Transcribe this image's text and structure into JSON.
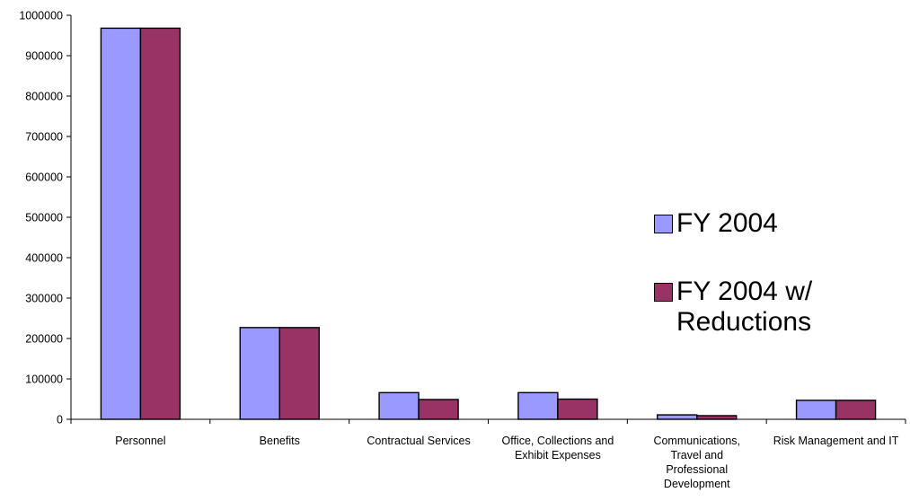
{
  "chart_data": {
    "type": "bar",
    "categories": [
      "Personnel",
      "Benefits",
      "Contractual Services",
      "Office, Collections and Exhibit Expenses",
      "Communications, Travel and Professional Development",
      "Risk Management and IT"
    ],
    "series": [
      {
        "name": "FY 2004",
        "color": "#9999ff",
        "values": [
          968000,
          227000,
          66000,
          66000,
          11000,
          47000
        ]
      },
      {
        "name": "FY 2004 w/ Reductions",
        "color": "#993366",
        "values": [
          968000,
          227000,
          49000,
          50000,
          9000,
          47000
        ]
      }
    ],
    "yticks": [
      "0",
      "100000",
      "200000",
      "300000",
      "400000",
      "500000",
      "600000",
      "700000",
      "800000",
      "900000",
      "1000000"
    ],
    "ylim": [
      0,
      1000000
    ],
    "title": "",
    "xlabel": "",
    "ylabel": "",
    "grid": false,
    "legend_position": "right"
  }
}
